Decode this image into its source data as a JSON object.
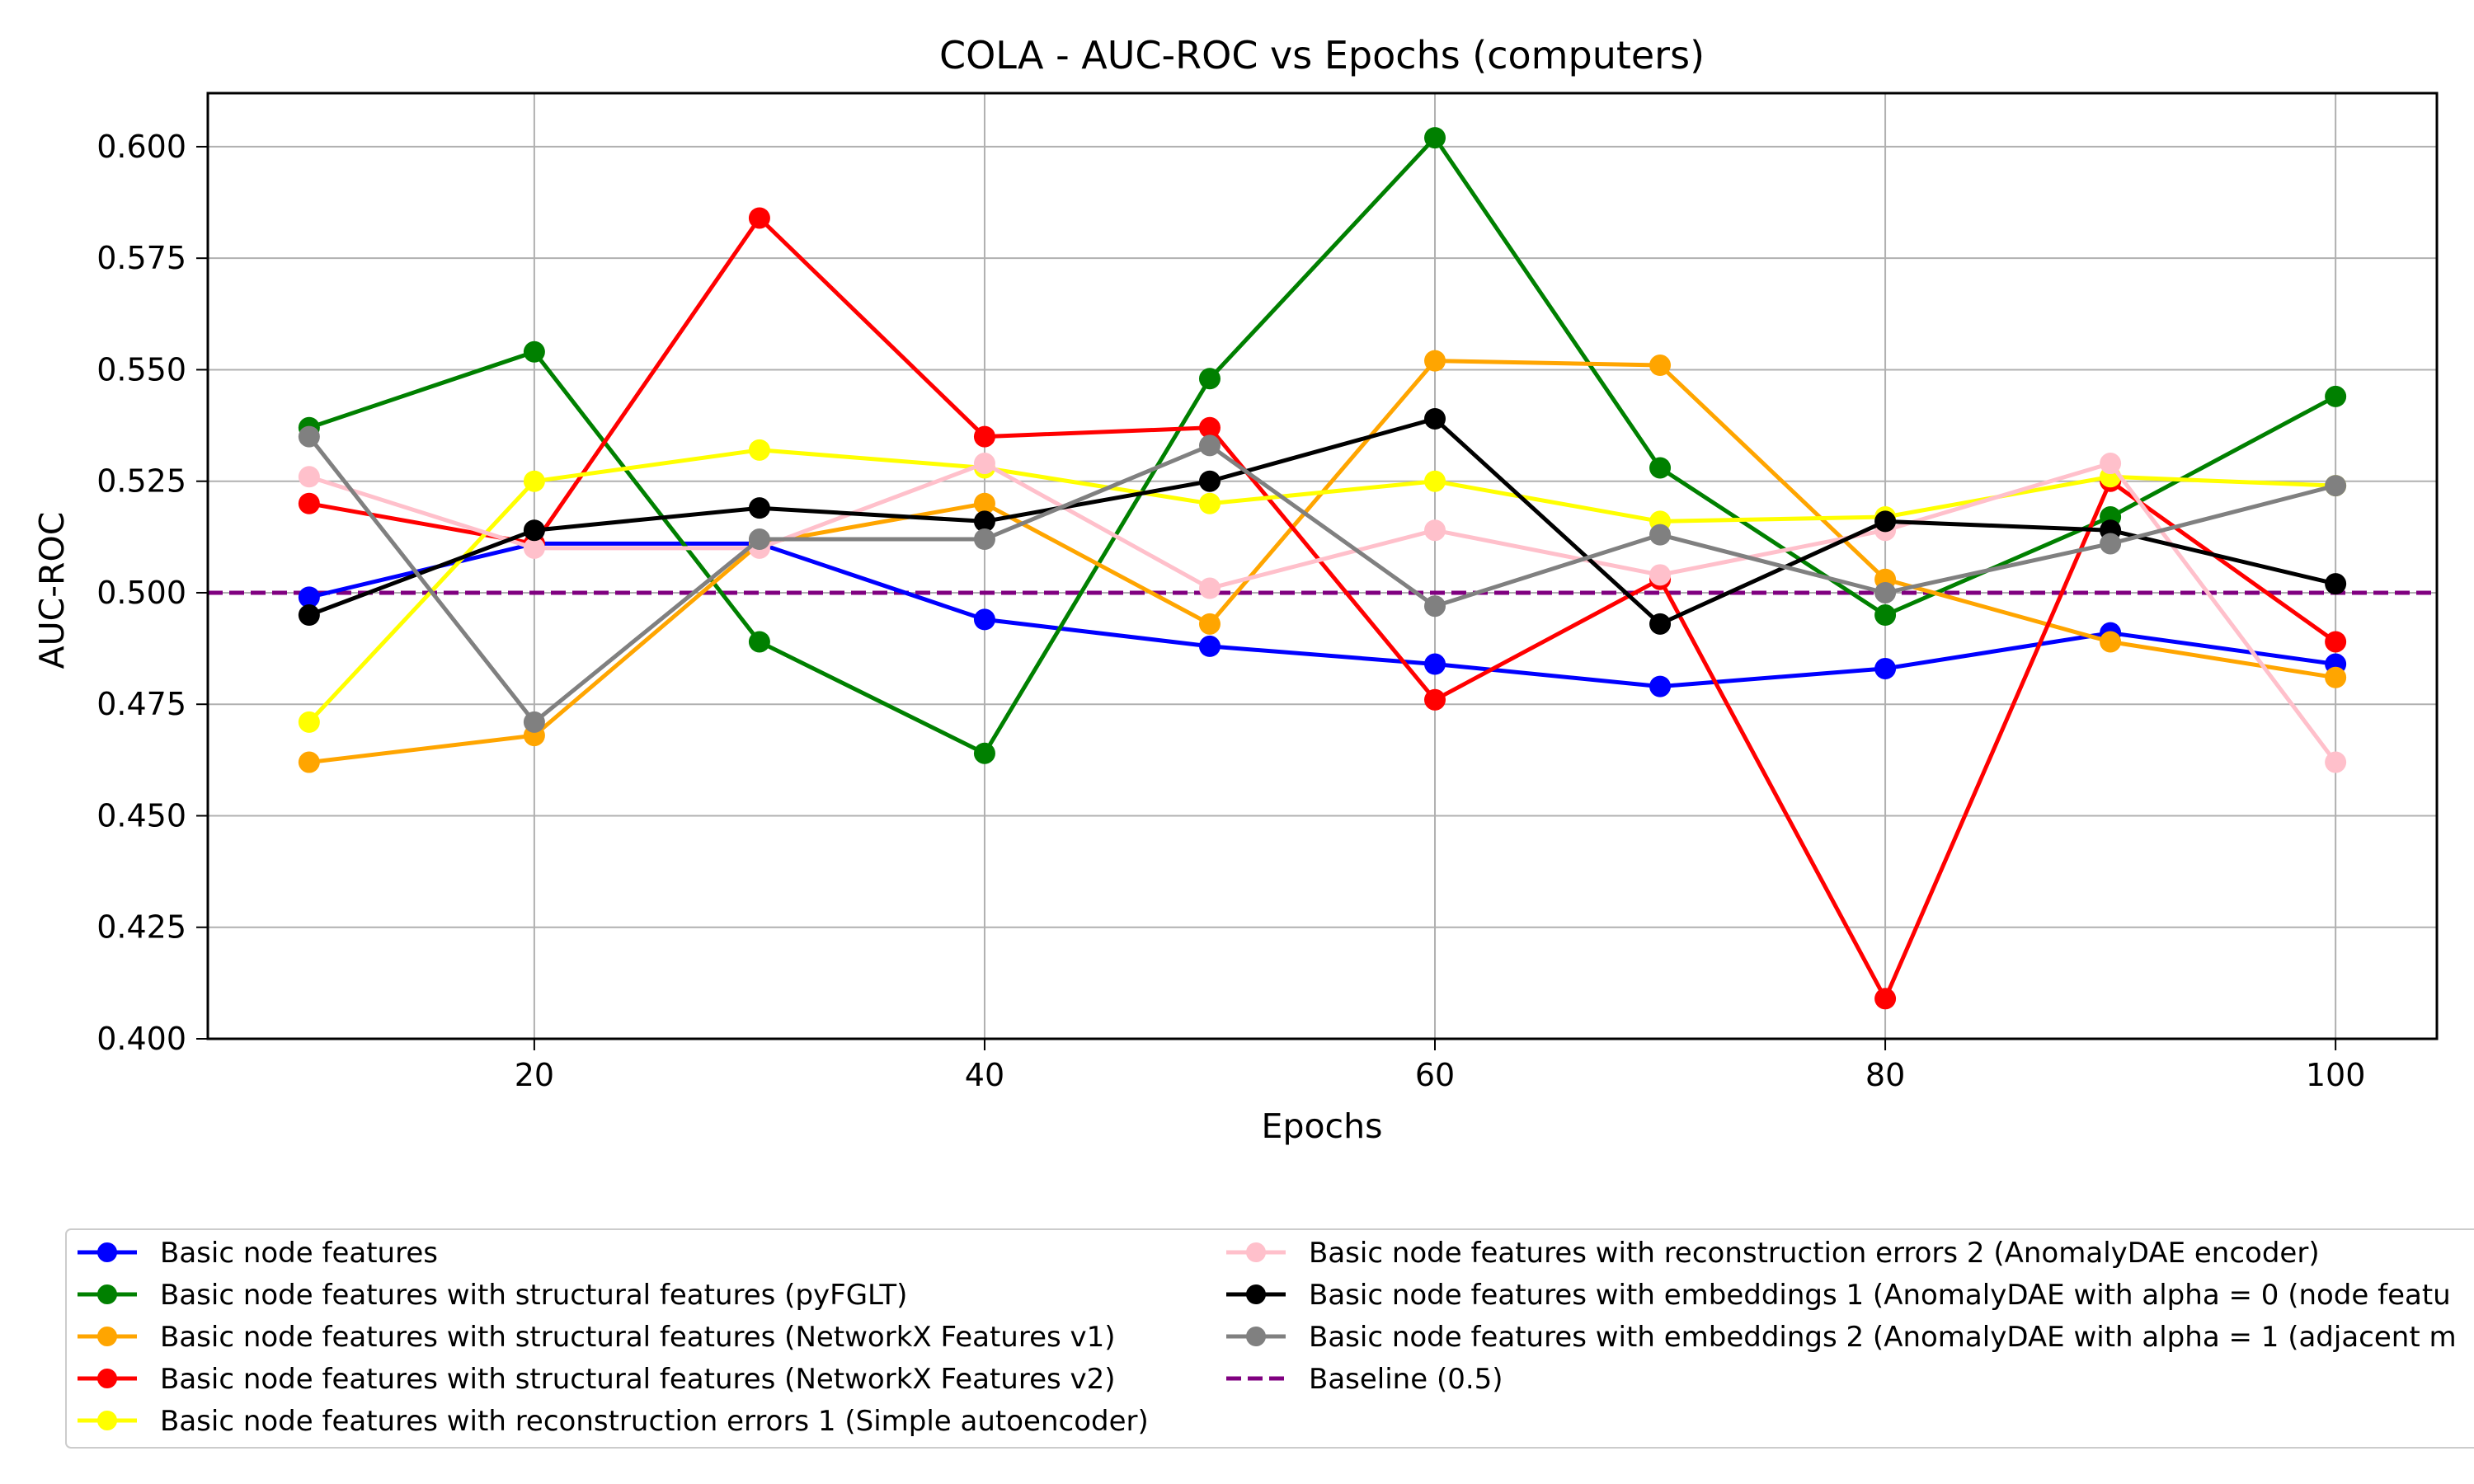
{
  "chart_data": {
    "type": "line",
    "title": "COLA - AUC-ROC vs Epochs (computers)",
    "xlabel": "Epochs",
    "ylabel": "AUC-ROC",
    "xlim": [
      5.5,
      104.5
    ],
    "ylim": [
      0.4,
      0.612
    ],
    "x_ticks": [
      20,
      40,
      60,
      80,
      100
    ],
    "y_ticks": [
      0.4,
      0.425,
      0.45,
      0.475,
      0.5,
      0.525,
      0.55,
      0.575,
      0.6
    ],
    "x_tick_labels": [
      "20",
      "40",
      "60",
      "80",
      "100"
    ],
    "y_tick_labels": [
      "0.400",
      "0.425",
      "0.450",
      "0.475",
      "0.500",
      "0.525",
      "0.550",
      "0.575",
      "0.600"
    ],
    "grid": true,
    "legend_placement": "below plot, two columns",
    "x": [
      10,
      20,
      30,
      40,
      50,
      60,
      70,
      80,
      90,
      100
    ],
    "series": [
      {
        "name": "Basic node features",
        "color": "#0000ff",
        "values": [
          0.499,
          0.511,
          0.511,
          0.494,
          0.488,
          0.484,
          0.479,
          0.483,
          0.491,
          0.484
        ]
      },
      {
        "name": "Basic node features with structural features (pyFGLT)",
        "color": "#008000",
        "values": [
          0.537,
          0.554,
          0.489,
          0.464,
          0.548,
          0.602,
          0.528,
          0.495,
          0.517,
          0.544
        ]
      },
      {
        "name": "Basic node features with structural features (NetworkX Features v1)",
        "color": "#ffa500",
        "values": [
          0.462,
          0.468,
          0.511,
          0.52,
          0.493,
          0.552,
          0.551,
          0.503,
          0.489,
          0.481
        ]
      },
      {
        "name": "Basic node features with structural features (NetworkX Features v2)",
        "color": "#ff0000",
        "values": [
          0.52,
          0.511,
          0.584,
          0.535,
          0.537,
          0.476,
          0.503,
          0.409,
          0.525,
          0.489
        ]
      },
      {
        "name": "Basic node features with reconstruction errors 1 (Simple autoencoder)",
        "color": "#ffff00",
        "values": [
          0.471,
          0.525,
          0.532,
          0.528,
          0.52,
          0.525,
          0.516,
          0.517,
          0.526,
          0.524
        ]
      },
      {
        "name": "Basic node features with reconstruction errors 2 (AnomalyDAE encoder)",
        "color": "#ffc0cb",
        "values": [
          0.526,
          0.51,
          0.51,
          0.529,
          0.501,
          0.514,
          0.504,
          0.514,
          0.529,
          0.462
        ]
      },
      {
        "name": "Basic node features with embeddings 1 (AnomalyDAE with alpha = 0 (node featu",
        "color": "#000000",
        "values": [
          0.495,
          0.514,
          0.519,
          0.516,
          0.525,
          0.539,
          0.493,
          0.516,
          0.514,
          0.502
        ]
      },
      {
        "name": "Basic node features with embeddings 2 (AnomalyDAE with alpha = 1 (adjacent m",
        "color": "#808080",
        "values": [
          0.535,
          0.471,
          0.512,
          0.512,
          0.533,
          0.497,
          0.513,
          0.5,
          0.511,
          0.524
        ]
      }
    ],
    "baseline": {
      "name": "Baseline (0.5)",
      "color": "#800080",
      "value": 0.5
    }
  }
}
